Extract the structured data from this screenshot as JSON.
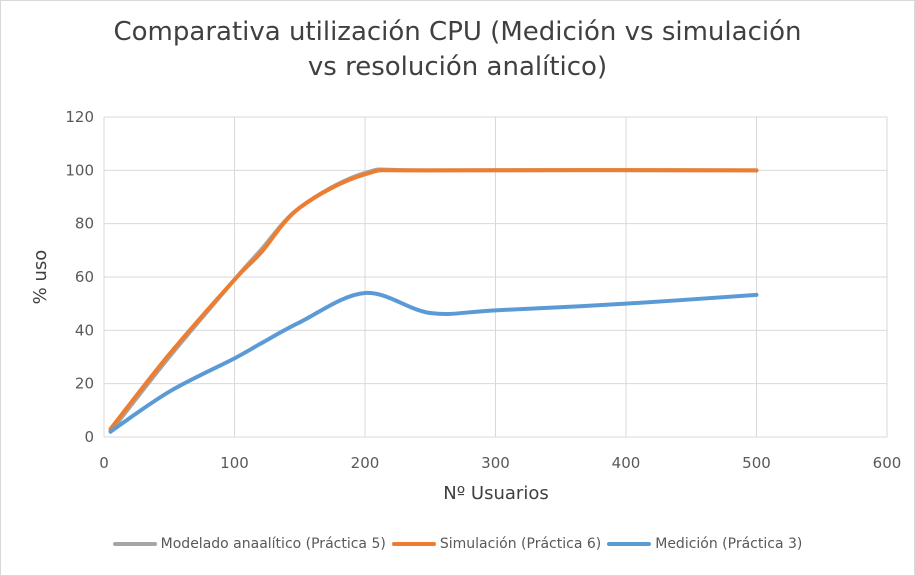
{
  "chart_data": {
    "type": "line",
    "title_line1": "Comparativa utilización CPU (Medición vs simulación",
    "title_line2": "vs resolución analítico)",
    "xlabel": "Nº Usuarios",
    "ylabel": "% uso",
    "xlim": [
      0,
      600
    ],
    "ylim": [
      0,
      120
    ],
    "x_ticks": [
      0,
      100,
      200,
      300,
      400,
      500,
      600
    ],
    "y_ticks": [
      0,
      20,
      40,
      60,
      80,
      100,
      120
    ],
    "grid": true,
    "legend_position": "bottom",
    "series": [
      {
        "name": "Modelado anaalítico (Práctica 5)",
        "color": "#a5a5a5",
        "x": [
          5,
          50,
          100,
          120,
          150,
          200,
          250,
          500
        ],
        "y": [
          2,
          30,
          59,
          70,
          86,
          99,
          100,
          100
        ]
      },
      {
        "name": "Simulación (Práctica 6)",
        "color": "#ed7d31",
        "x": [
          5,
          50,
          100,
          120,
          150,
          200,
          250,
          500
        ],
        "y": [
          3,
          31,
          59,
          69,
          86,
          98.5,
          100,
          100
        ]
      },
      {
        "name": "Medición (Práctica 3)",
        "color": "#5b9bd5",
        "x": [
          5,
          50,
          100,
          120,
          150,
          200,
          250,
          300,
          400,
          500
        ],
        "y": [
          2,
          17,
          29.5,
          35,
          43,
          54,
          46.5,
          47.5,
          50,
          53.3
        ]
      }
    ]
  }
}
